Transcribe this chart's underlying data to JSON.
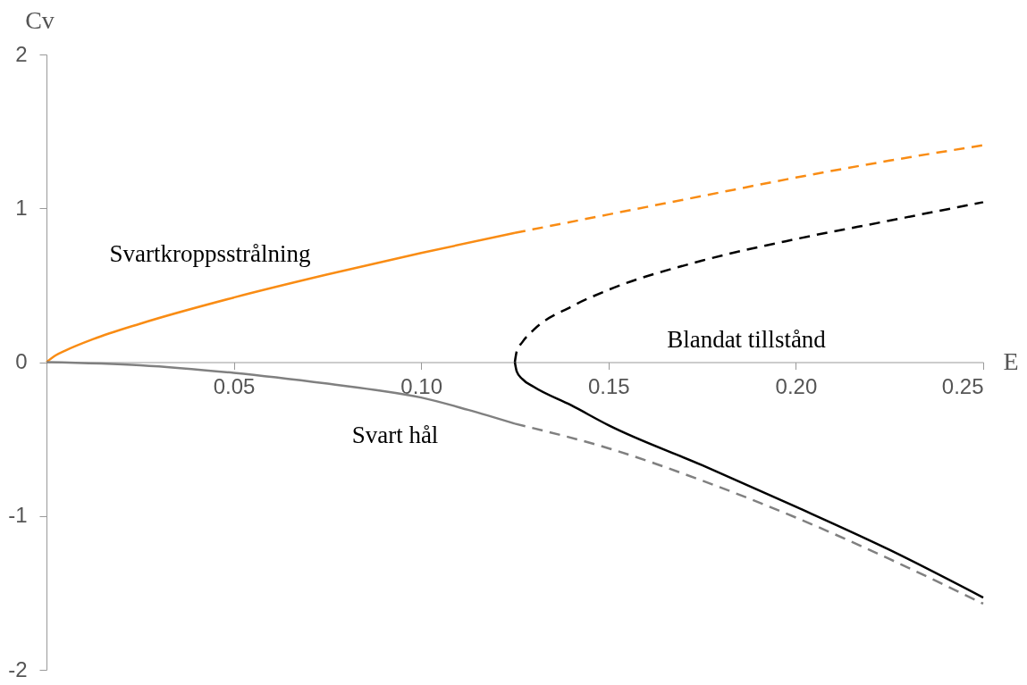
{
  "chart_data": {
    "type": "line",
    "xlabel": "E",
    "ylabel": "Cv",
    "xlim": [
      0,
      0.25
    ],
    "ylim": [
      -2,
      2
    ],
    "xticks": [
      0.05,
      {
        "value": 0.1,
        "label": "0.10"
      },
      0.15,
      {
        "value": 0.2,
        "label": "0.20"
      },
      0.25
    ],
    "yticks": [
      -2,
      -1,
      0,
      1,
      2
    ],
    "grid": false,
    "series": [
      {
        "color": "#f98c14",
        "line_style": "solid",
        "x": [
          0,
          0.0025,
          0.005,
          0.0125,
          0.025,
          0.05,
          0.075,
          0.1,
          0.125
        ],
        "values": [
          0,
          0.045,
          0.075,
          0.15,
          0.25,
          0.42,
          0.57,
          0.71,
          0.84
        ]
      },
      {
        "color": "#f98c14",
        "line_style": "dashed",
        "x": [
          0.125,
          0.15,
          0.175,
          0.2,
          0.225,
          0.25
        ],
        "values": [
          0.84,
          0.96,
          1.08,
          1.2,
          1.31,
          1.41
        ]
      },
      {
        "color": "#808080",
        "line_style": "solid",
        "x": [
          0,
          0.025,
          0.05,
          0.075,
          0.0875,
          0.1,
          0.1125,
          0.125
        ],
        "values": [
          0,
          -0.02,
          -0.07,
          -0.14,
          -0.18,
          -0.23,
          -0.31,
          -0.4
        ]
      },
      {
        "color": "#808080",
        "line_style": "dashed",
        "x": [
          0.125,
          0.15,
          0.175,
          0.2,
          0.225,
          0.25
        ],
        "values": [
          -0.4,
          -0.56,
          -0.77,
          -1.01,
          -1.28,
          -1.57
        ]
      },
      {
        "color": "#000000",
        "line_style": "dashed",
        "x": [
          0.125,
          0.1255,
          0.127,
          0.13,
          0.14,
          0.15,
          0.175,
          0.2,
          0.225,
          0.25
        ],
        "values": [
          0,
          0.07,
          0.13,
          0.21,
          0.36,
          0.47,
          0.66,
          0.8,
          0.92,
          1.04
        ]
      },
      {
        "color": "#000000",
        "line_style": "solid",
        "x": [
          0.125,
          0.1255,
          0.127,
          0.13,
          0.14,
          0.15,
          0.175,
          0.2,
          0.225,
          0.25
        ],
        "values": [
          0,
          -0.06,
          -0.11,
          -0.16,
          -0.28,
          -0.41,
          -0.67,
          -0.94,
          -1.22,
          -1.53
        ]
      }
    ],
    "annotations": [
      "Svartkroppsstrålning",
      "Svart hål",
      "Blandat tillstånd"
    ]
  }
}
